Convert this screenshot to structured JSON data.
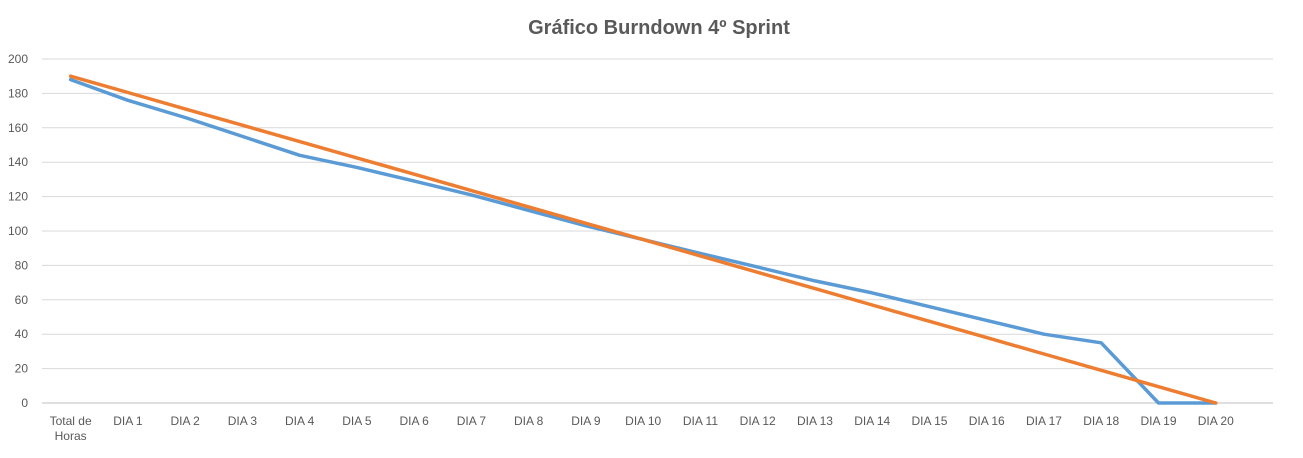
{
  "chart_data": {
    "type": "line",
    "title": "Gráfico Burndown 4º Sprint",
    "xlabel": "",
    "ylabel": "",
    "categories": [
      "Total de Horas",
      "DIA 1",
      "DIA 2",
      "DIA 3",
      "DIA 4",
      "DIA 5",
      "DIA 6",
      "DIA 7",
      "DIA 8",
      "DIA 9",
      "DIA 10",
      "DIA 11",
      "DIA 12",
      "DIA 13",
      "DIA 14",
      "DIA 15",
      "DIA 16",
      "DIA 17",
      "DIA 18",
      "DIA 19",
      "DIA 20"
    ],
    "yticks": [
      "0",
      "20",
      "40",
      "60",
      "80",
      "100",
      "120",
      "140",
      "160",
      "180",
      "200"
    ],
    "ylim": [
      0,
      200
    ],
    "grid": true,
    "legend": "none",
    "series": [
      {
        "color": "#5b9bd5",
        "values": [
          188,
          176,
          166,
          155,
          144,
          137,
          129,
          121,
          112,
          103,
          95,
          87,
          79,
          71,
          64,
          56,
          48,
          40,
          35,
          0,
          0
        ]
      },
      {
        "color": "#ed7d31",
        "values": [
          190,
          180.5,
          171,
          161.5,
          152,
          142.5,
          133,
          123.5,
          114,
          104.5,
          95,
          85.5,
          76,
          66.5,
          57,
          47.5,
          38,
          28.5,
          19,
          9.5,
          0
        ]
      }
    ]
  }
}
